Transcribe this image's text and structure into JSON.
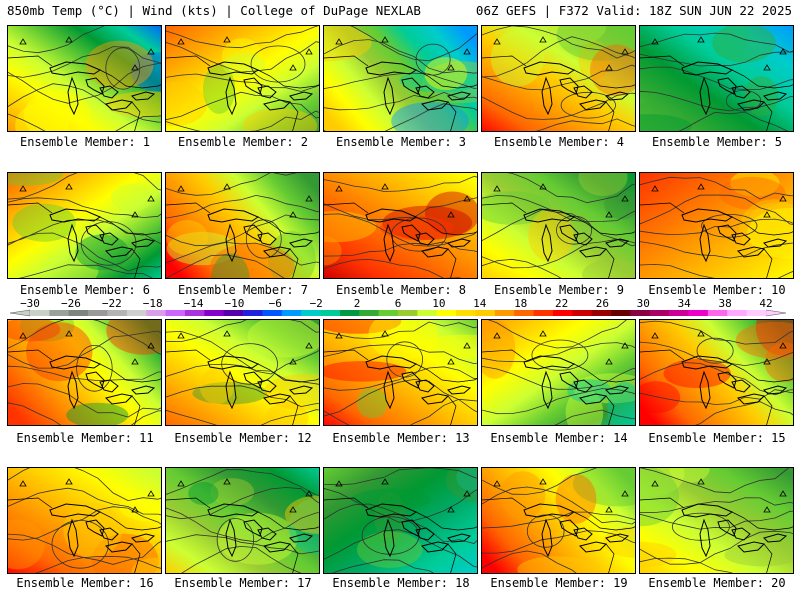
{
  "header": {
    "left": "850mb Temp (°C) | Wind (kts) | College of DuPage NEXLAB",
    "right": "06Z GEFS | F372 Valid: 18Z SUN JUN 22 2025"
  },
  "panels": [
    {
      "label": "Ensemble Member: 1",
      "palette": [
        "#ff9900",
        "#ffcc00",
        "#ffff00",
        "#ccff33",
        "#66cc33",
        "#009933",
        "#00cc99",
        "#0066ff"
      ]
    },
    {
      "label": "Ensemble Member: 2",
      "palette": [
        "#ff6600",
        "#ff9900",
        "#ffcc00",
        "#ffff00",
        "#ccff33",
        "#66cc33",
        "#339933"
      ]
    },
    {
      "label": "Ensemble Member: 3",
      "palette": [
        "#ffcc00",
        "#ffff00",
        "#ccff33",
        "#99cc33",
        "#66cc33",
        "#00cc99",
        "#00cccc",
        "#0099ff"
      ]
    },
    {
      "label": "Ensemble Member: 4",
      "palette": [
        "#ff0000",
        "#ff6600",
        "#ff9900",
        "#ffcc00",
        "#ccff33",
        "#99cc33",
        "#66cc33"
      ]
    },
    {
      "label": "Ensemble Member: 5",
      "palette": [
        "#66cc33",
        "#33aa33",
        "#009933",
        "#00cc99",
        "#00cccc",
        "#0099ff"
      ]
    },
    {
      "label": "Ensemble Member: 6",
      "palette": [
        "#ff6600",
        "#ff9900",
        "#ffcc00",
        "#ffff00",
        "#ccff33",
        "#66cc33",
        "#009933",
        "#00cc99"
      ]
    },
    {
      "label": "Ensemble Member: 7",
      "palette": [
        "#ff0000",
        "#ff6600",
        "#ff9900",
        "#ffcc00",
        "#ccff33",
        "#66cc33",
        "#339933"
      ]
    },
    {
      "label": "Ensemble Member: 8",
      "palette": [
        "#cc0000",
        "#ff3300",
        "#ff6600",
        "#ff9900",
        "#ffcc00",
        "#ffff00"
      ]
    },
    {
      "label": "Ensemble Member: 9",
      "palette": [
        "#ffcc00",
        "#ffff00",
        "#ccff33",
        "#99cc33",
        "#66cc33",
        "#339933",
        "#009933"
      ]
    },
    {
      "label": "Ensemble Member: 10",
      "palette": [
        "#ff3300",
        "#ff6600",
        "#ff9900",
        "#ffcc00",
        "#ffff00"
      ]
    },
    {
      "label": "Ensemble Member: 11",
      "palette": [
        "#ff3300",
        "#ff6600",
        "#ff9900",
        "#ffcc00",
        "#ffff00",
        "#ccff33",
        "#66cc33",
        "#009933"
      ]
    },
    {
      "label": "Ensemble Member: 12",
      "palette": [
        "#ff6600",
        "#ff9900",
        "#ffcc00",
        "#ffff00",
        "#ccff33",
        "#66cc33",
        "#339933"
      ]
    },
    {
      "label": "Ensemble Member: 13",
      "palette": [
        "#ff0000",
        "#ff6600",
        "#ff9900",
        "#ffcc00",
        "#ffff00",
        "#ccff33",
        "#66cc33"
      ]
    },
    {
      "label": "Ensemble Member: 14",
      "palette": [
        "#ff9900",
        "#ffcc00",
        "#ffff00",
        "#ccff33",
        "#66cc33",
        "#339933",
        "#00cc99"
      ]
    },
    {
      "label": "Ensemble Member: 15",
      "palette": [
        "#ff0000",
        "#ff6600",
        "#ff9900",
        "#ffcc00",
        "#ccff33",
        "#66cc33",
        "#009933"
      ]
    },
    {
      "label": "Ensemble Member: 16",
      "palette": [
        "#ff0000",
        "#ff6600",
        "#ff9900",
        "#ffcc00",
        "#ffff00",
        "#ccff33"
      ]
    },
    {
      "label": "Ensemble Member: 17",
      "palette": [
        "#ffcc00",
        "#ccff33",
        "#99cc33",
        "#66cc33",
        "#339933",
        "#009933",
        "#00cc99"
      ]
    },
    {
      "label": "Ensemble Member: 18",
      "palette": [
        "#66cc33",
        "#339933",
        "#009933",
        "#00aa66",
        "#00cc99",
        "#00cccc"
      ]
    },
    {
      "label": "Ensemble Member: 19",
      "palette": [
        "#ff0000",
        "#ff6600",
        "#ff9900",
        "#ffcc00",
        "#ffff00",
        "#ccff33",
        "#66cc33"
      ]
    },
    {
      "label": "Ensemble Member: 20",
      "palette": [
        "#ffcc00",
        "#ffff00",
        "#ccff33",
        "#99cc33",
        "#66cc33",
        "#339933"
      ]
    }
  ],
  "colorbar": {
    "ticks": [
      "-30",
      "-26",
      "-22",
      "-18",
      "-14",
      "-10",
      "-6",
      "-2",
      "2",
      "6",
      "10",
      "14",
      "18",
      "22",
      "26",
      "30",
      "34",
      "38",
      "42"
    ],
    "colors": [
      "#c8d0c8",
      "#9aa09a",
      "#7e857e",
      "#9a9a9a",
      "#b4b4b4",
      "#cfcfcf",
      "#d8a0e8",
      "#cc66ff",
      "#aa33dd",
      "#8800cc",
      "#5500aa",
      "#2222dd",
      "#0055ff",
      "#0099ff",
      "#00cccc",
      "#00cc99",
      "#009944",
      "#33aa33",
      "#66cc33",
      "#99cc33",
      "#ccff33",
      "#ffff00",
      "#ffdd00",
      "#ffcc00",
      "#ff9900",
      "#ff6600",
      "#ff3300",
      "#ff0000",
      "#cc0000",
      "#990000",
      "#660000",
      "#880044",
      "#aa0066",
      "#cc0099",
      "#ee00cc",
      "#ff66ee",
      "#ffaaff",
      "#ffccff"
    ]
  }
}
